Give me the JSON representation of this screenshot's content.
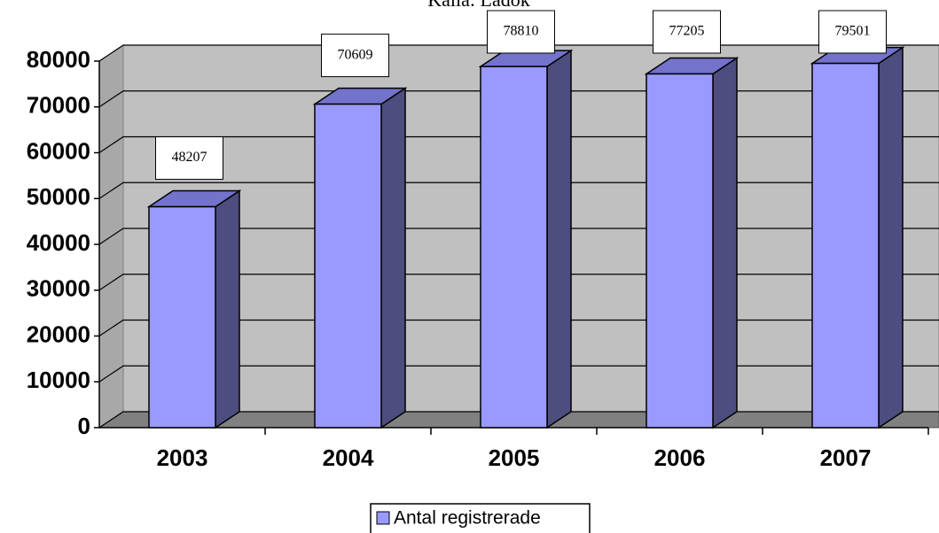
{
  "chart_data": {
    "type": "bar3d",
    "title": "Källa: Ladok",
    "categories": [
      "2003",
      "2004",
      "2005",
      "2006",
      "2007"
    ],
    "series": [
      {
        "name": "Antal registrerade",
        "color": "#9999ff",
        "values": [
          48207,
          70609,
          78810,
          77205,
          79501
        ]
      }
    ],
    "ylim": [
      0,
      80000
    ],
    "yticks": [
      0,
      10000,
      20000,
      30000,
      40000,
      50000,
      60000,
      70000,
      80000
    ],
    "grid": true
  }
}
